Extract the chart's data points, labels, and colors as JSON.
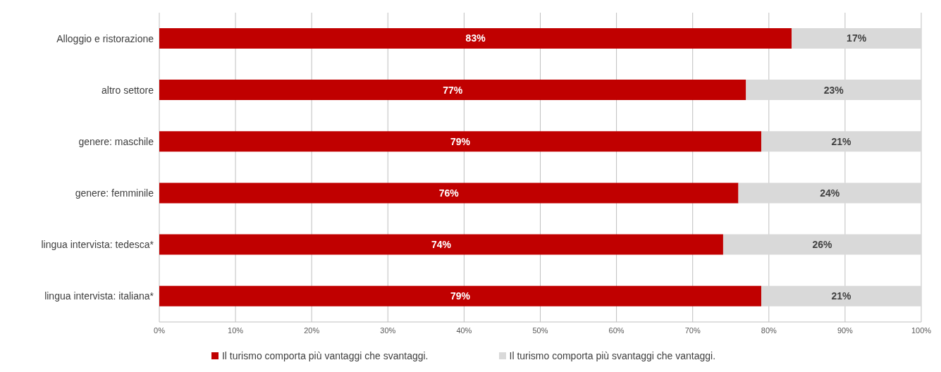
{
  "chart_data": {
    "type": "bar",
    "orientation": "horizontal",
    "stacked": true,
    "categories": [
      "Alloggio e ristorazione",
      "altro settore",
      "genere: maschile",
      "genere: femminile",
      "lingua intervista: tedesca*",
      "lingua intervista: italiana*"
    ],
    "series": [
      {
        "name": "Il turismo comporta più vantaggi che svantaggi.",
        "color": "#c00000",
        "values": [
          83,
          77,
          79,
          76,
          74,
          79
        ],
        "value_labels": [
          "83%",
          "77%",
          "79%",
          "76%",
          "74%",
          "79%"
        ]
      },
      {
        "name": "Il turismo comporta più svantaggi che vantaggi.",
        "color": "#d9d9d9",
        "values": [
          17,
          23,
          21,
          24,
          26,
          21
        ],
        "value_labels": [
          "17%",
          "23%",
          "21%",
          "24%",
          "26%",
          "21%"
        ]
      }
    ],
    "xlim": [
      0,
      100
    ],
    "xticks": [
      {
        "value": 0,
        "label": "0%"
      },
      {
        "value": 10,
        "label": "10%"
      },
      {
        "value": 20,
        "label": "20%"
      },
      {
        "value": 30,
        "label": "30%"
      },
      {
        "value": 40,
        "label": "40%"
      },
      {
        "value": 50,
        "label": "50%"
      },
      {
        "value": 60,
        "label": "60%"
      },
      {
        "value": 70,
        "label": "70%"
      },
      {
        "value": 80,
        "label": "80%"
      },
      {
        "value": 90,
        "label": "90%"
      },
      {
        "value": 100,
        "label": "100%"
      }
    ],
    "grid": "x",
    "legend": "bottom"
  }
}
